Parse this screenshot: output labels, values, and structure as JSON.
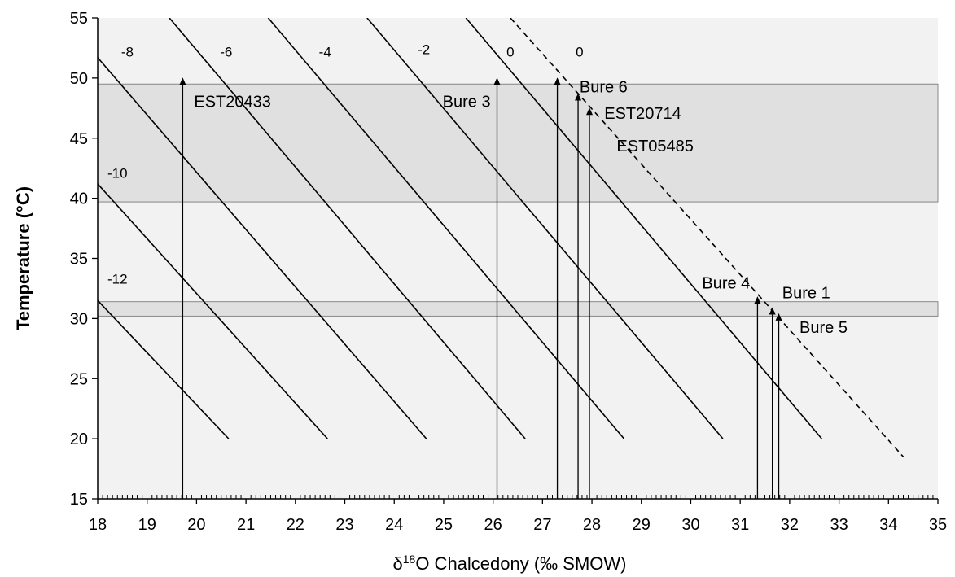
{
  "chart_data": {
    "type": "line",
    "xlabel": "δ18O Chalcedony (‰ SMOW)",
    "ylabel": "Temperature (°C)",
    "xlim": [
      18,
      35
    ],
    "ylim": [
      15,
      55
    ],
    "x_ticks": [
      "18",
      "19",
      "20",
      "21",
      "22",
      "23",
      "24",
      "25",
      "26",
      "27",
      "28",
      "29",
      "30",
      "31",
      "32",
      "33",
      "34",
      "35"
    ],
    "y_ticks": [
      "15",
      "20",
      "25",
      "30",
      "35",
      "40",
      "45",
      "50",
      "55"
    ],
    "grid": false,
    "plot_background": "#f2f2f2",
    "band_color": "#e0e0e0",
    "shaded_bands": [
      {
        "y_range": [
          39.7,
          49.5
        ]
      },
      {
        "y_range": [
          30.2,
          31.4
        ]
      }
    ],
    "isolines": [
      {
        "label": "-12",
        "label_at": [
          18.4,
          32.9
        ],
        "style": "solid",
        "points": [
          [
            18.0,
            31.5
          ],
          [
            20.65,
            20.0
          ]
        ]
      },
      {
        "label": "-10",
        "label_at": [
          18.4,
          41.7
        ],
        "style": "solid",
        "points": [
          [
            18.0,
            41.2
          ],
          [
            22.65,
            20.0
          ]
        ]
      },
      {
        "label": "-8",
        "label_at": [
          18.6,
          51.8
        ],
        "style": "solid",
        "points": [
          [
            18.0,
            51.7
          ],
          [
            24.65,
            20.0
          ]
        ]
      },
      {
        "label": "-6",
        "label_at": [
          20.6,
          51.8
        ],
        "style": "solid",
        "points": [
          [
            19.45,
            55.0
          ],
          [
            26.65,
            20.0
          ]
        ]
      },
      {
        "label": "-4",
        "label_at": [
          22.6,
          51.8
        ],
        "style": "solid",
        "points": [
          [
            21.45,
            55.0
          ],
          [
            28.65,
            20.0
          ]
        ]
      },
      {
        "label": "-2",
        "label_at": [
          24.6,
          52.0
        ],
        "style": "solid",
        "points": [
          [
            23.45,
            55.0
          ],
          [
            30.65,
            20.0
          ]
        ]
      },
      {
        "label": "0",
        "label_at": [
          26.35,
          51.8
        ],
        "style": "solid",
        "points": [
          [
            25.45,
            55.0
          ],
          [
            32.65,
            20.0
          ]
        ]
      },
      {
        "label": "0",
        "label_at": [
          27.75,
          51.8
        ],
        "style": "dashed",
        "points": [
          [
            26.35,
            55.0
          ],
          [
            34.3,
            18.5
          ]
        ]
      }
    ],
    "samples": [
      {
        "name": "EST20433",
        "x": 19.72,
        "y": 49.5,
        "label_at": [
          19.95,
          47.6
        ],
        "anchor": "start"
      },
      {
        "name": "Bure 3",
        "x": 26.08,
        "y": 49.5,
        "label_at": [
          25.95,
          47.6
        ],
        "anchor": "end"
      },
      {
        "name": "Bure 6",
        "x": 27.3,
        "y": 49.5,
        "label_at": [
          27.75,
          48.8
        ],
        "anchor": "start"
      },
      {
        "name": "EST20714",
        "x": 27.72,
        "y": 48.2,
        "label_at": [
          28.25,
          46.6
        ],
        "anchor": "start"
      },
      {
        "name": "EST05485",
        "x": 27.95,
        "y": 47.0,
        "label_at": [
          28.5,
          43.9
        ],
        "anchor": "start"
      },
      {
        "name": "Bure 4",
        "x": 31.35,
        "y": 31.3,
        "label_at": [
          31.2,
          32.5
        ],
        "anchor": "end"
      },
      {
        "name": "Bure 1",
        "x": 31.65,
        "y": 30.4,
        "label_at": [
          31.85,
          31.7
        ],
        "anchor": "start"
      },
      {
        "name": "Bure 5",
        "x": 31.78,
        "y": 29.9,
        "label_at": [
          32.2,
          28.8
        ],
        "anchor": "start"
      }
    ]
  }
}
